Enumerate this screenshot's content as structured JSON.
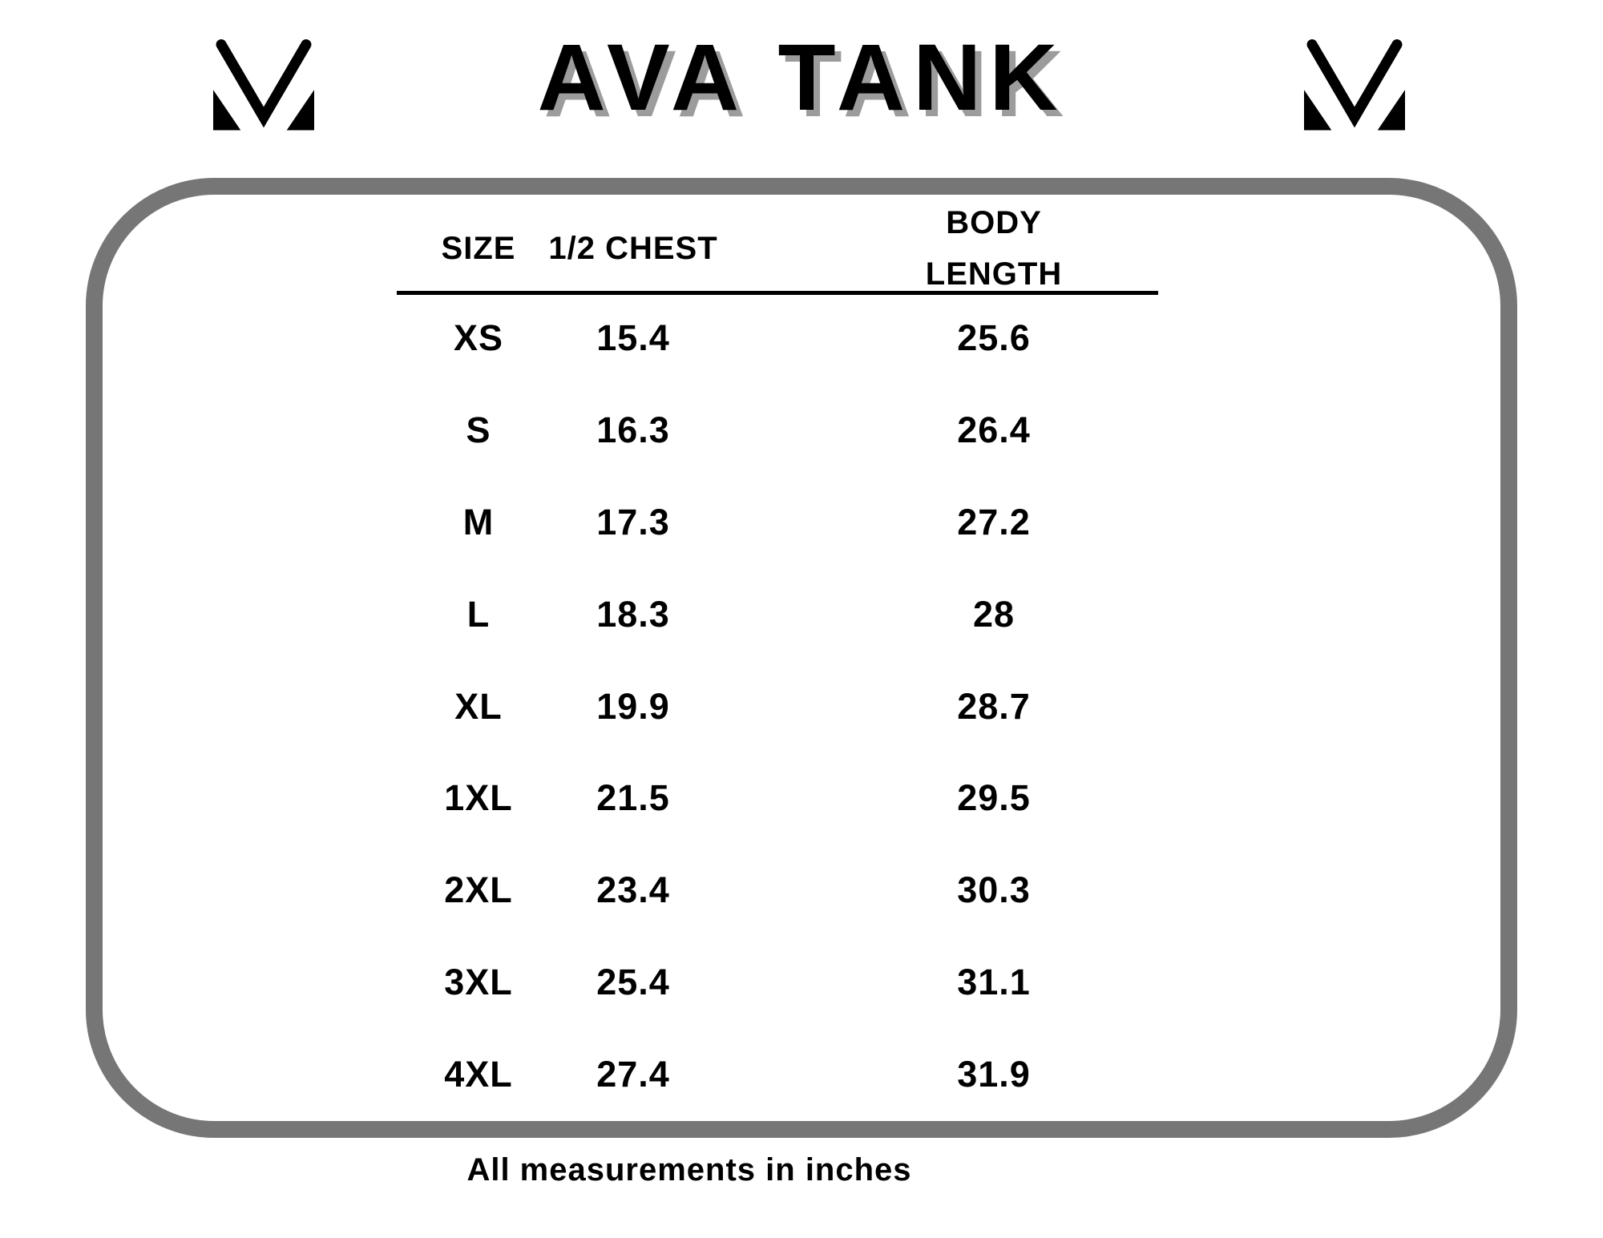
{
  "page": {
    "title": "AVA TANK",
    "footer_note": "All measurements in inches"
  },
  "colors": {
    "background": "#ffffff",
    "text": "#000000",
    "border_gray": "#767676",
    "title_shadow": "#9c9c9c"
  },
  "logo": {
    "name": "mv-monogram-logo"
  },
  "chart_data": {
    "type": "table",
    "title": "AVA TANK",
    "columns": [
      "SIZE",
      "1/2 CHEST",
      "BODY LENGTH"
    ],
    "rows": [
      [
        "XS",
        15.4,
        25.6
      ],
      [
        "S",
        16.3,
        26.4
      ],
      [
        "M",
        17.3,
        27.2
      ],
      [
        "L",
        18.3,
        28
      ],
      [
        "XL",
        19.9,
        28.7
      ],
      [
        "1XL",
        21.5,
        29.5
      ],
      [
        "2XL",
        23.4,
        30.3
      ],
      [
        "3XL",
        25.4,
        31.1
      ],
      [
        "4XL",
        27.4,
        31.9
      ]
    ],
    "note": "All measurements in inches",
    "units": "inches",
    "layout": {
      "grid": false,
      "legend": false
    }
  }
}
